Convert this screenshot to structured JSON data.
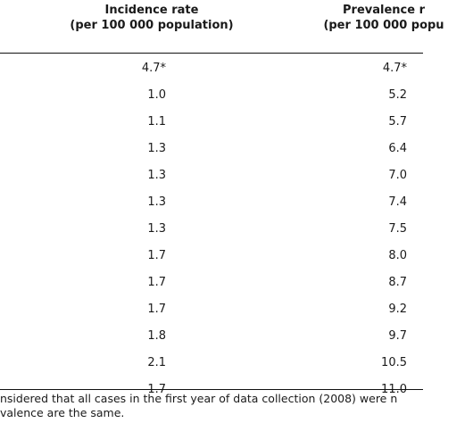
{
  "table": {
    "headers": {
      "incidence": [
        "Incidence rate",
        "(per 100 000 population)"
      ],
      "prevalence": [
        "Prevalence r",
        "(per 100 000 popu"
      ]
    },
    "rows": [
      {
        "incidence": "4.7*",
        "prevalence": "4.7*"
      },
      {
        "incidence": "1.0",
        "prevalence": "5.2"
      },
      {
        "incidence": "1.1",
        "prevalence": "5.7"
      },
      {
        "incidence": "1.3",
        "prevalence": "6.4"
      },
      {
        "incidence": "1.3",
        "prevalence": "7.0"
      },
      {
        "incidence": "1.3",
        "prevalence": "7.4"
      },
      {
        "incidence": "1.3",
        "prevalence": "7.5"
      },
      {
        "incidence": "1.7",
        "prevalence": "8.0"
      },
      {
        "incidence": "1.7",
        "prevalence": "8.7"
      },
      {
        "incidence": "1.7",
        "prevalence": "9.2"
      },
      {
        "incidence": "1.8",
        "prevalence": "9.7"
      },
      {
        "incidence": "2.1",
        "prevalence": "10.5"
      },
      {
        "incidence": "1.7",
        "prevalence": "11.0"
      }
    ],
    "footnote": [
      "nsidered that all cases in the first year of data collection (2008) were n",
      "valence are the same."
    ]
  }
}
